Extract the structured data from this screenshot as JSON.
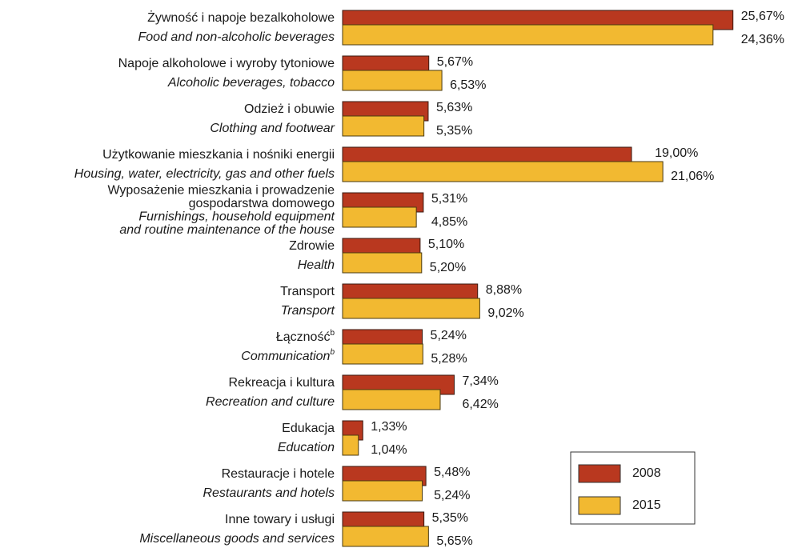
{
  "chart_data": {
    "type": "bar",
    "orientation": "horizontal",
    "categories": [
      {
        "pl": [
          "Żywność i napoje bezalkoholowe"
        ],
        "en": [
          "Food and non-alcoholic beverages"
        ]
      },
      {
        "pl": [
          "Napoje alkoholowe i wyroby tytoniowe"
        ],
        "en": [
          "Alcoholic beverages, tobacco"
        ]
      },
      {
        "pl": [
          "Odzież i obuwie"
        ],
        "en": [
          "Clothing and footwear"
        ]
      },
      {
        "pl": [
          "Użytkowanie mieszkania i nośniki energii"
        ],
        "en": [
          "Housing, water, electricity, gas and other fuels"
        ]
      },
      {
        "pl": [
          "Wyposażenie mieszkania i prowadzenie",
          "gospodarstwa domowego"
        ],
        "en": [
          "Furnishings, household equipment",
          "and routine maintenance of the house"
        ]
      },
      {
        "pl": [
          "Zdrowie"
        ],
        "en": [
          "Health"
        ]
      },
      {
        "pl": [
          "Transport"
        ],
        "en": [
          "Transport"
        ]
      },
      {
        "pl": [
          "Łączność"
        ],
        "en": [
          "Communication"
        ],
        "footnote": "b"
      },
      {
        "pl": [
          "Rekreacja i kultura"
        ],
        "en": [
          "Recreation and culture"
        ]
      },
      {
        "pl": [
          "Edukacja"
        ],
        "en": [
          "Education"
        ]
      },
      {
        "pl": [
          "Restauracje i hotele"
        ],
        "en": [
          "Restaurants and hotels"
        ]
      },
      {
        "pl": [
          "Inne towary i usługi"
        ],
        "en": [
          "Miscellaneous goods and services"
        ]
      }
    ],
    "series": [
      {
        "name": "2008",
        "color": "#b9381f",
        "values": [
          25.67,
          5.67,
          5.63,
          19.0,
          5.31,
          5.1,
          8.88,
          5.24,
          7.34,
          1.33,
          5.48,
          5.35
        ],
        "value_labels": [
          "25,67%",
          "5,67%",
          "5,63%",
          "19,00%",
          "5,31%",
          "5,10%",
          "8,88%",
          "5,24%",
          "7,34%",
          "1,33%",
          "5,48%",
          "5,35%"
        ]
      },
      {
        "name": "2015",
        "color": "#f2b931",
        "values": [
          24.36,
          6.53,
          5.35,
          21.06,
          4.85,
          5.2,
          9.02,
          5.28,
          6.42,
          1.04,
          5.24,
          5.65
        ],
        "value_labels": [
          "24,36%",
          "6,53%",
          "5,35%",
          "21,06%",
          "4,85%",
          "5,20%",
          "9,02%",
          "5,28%",
          "6,42%",
          "1,04%",
          "5,24%",
          "5,65%"
        ]
      }
    ],
    "legend": "lower-right"
  }
}
